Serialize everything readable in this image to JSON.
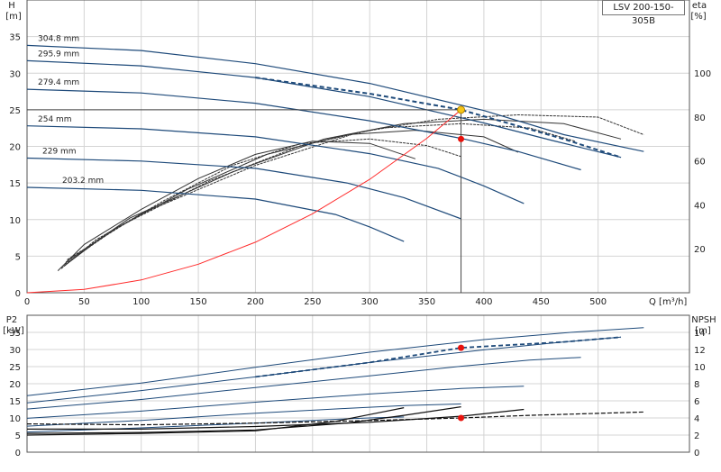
{
  "model": "LSV 200-150-305B",
  "chart_data": [
    {
      "type": "line",
      "title": "",
      "xlabel": "Q [m³/h]",
      "ylabel": "H\n[m]",
      "y2label": "eta\n[%]",
      "xlim": [
        0,
        580
      ],
      "ylim": [
        0,
        40
      ],
      "y2lim": [
        0,
        133.3
      ],
      "x_ticks": [
        0,
        50,
        100,
        150,
        200,
        250,
        300,
        350,
        400,
        450,
        500
      ],
      "y_ticks": [
        0,
        5,
        10,
        15,
        20,
        25,
        30,
        35
      ],
      "y2_ticks": [
        20,
        40,
        60,
        80,
        100
      ],
      "grid": true,
      "head_curves": [
        {
          "name": "304.8 mm",
          "x": [
            0,
            100,
            200,
            300,
            400,
            470,
            540
          ],
          "y": [
            33.8,
            33.1,
            31.3,
            28.6,
            24.9,
            21.6,
            19.3
          ]
        },
        {
          "name": "295.9 mm",
          "x": [
            0,
            100,
            200,
            300,
            400,
            460,
            520
          ],
          "y": [
            31.7,
            31.0,
            29.4,
            26.8,
            23.2,
            20.8,
            18.5
          ]
        },
        {
          "name": "279.4 mm",
          "x": [
            0,
            100,
            200,
            300,
            380,
            430,
            485
          ],
          "y": [
            27.8,
            27.3,
            25.9,
            23.5,
            21.1,
            19.3,
            16.8
          ]
        },
        {
          "name": "254 mm",
          "x": [
            0,
            100,
            200,
            300,
            360,
            400,
            435
          ],
          "y": [
            22.8,
            22.4,
            21.3,
            19.0,
            17.0,
            14.6,
            12.2
          ]
        },
        {
          "name": "229 mm",
          "x": [
            0,
            100,
            200,
            280,
            330,
            380
          ],
          "y": [
            18.4,
            18.0,
            17.0,
            15.0,
            13.0,
            10.1
          ]
        },
        {
          "name": "203.2 mm",
          "x": [
            0,
            100,
            200,
            270,
            300,
            330
          ],
          "y": [
            14.4,
            14.0,
            12.8,
            10.7,
            9.0,
            7.0
          ]
        }
      ],
      "eta_curves": [
        {
          "x": [
            27,
            50,
            100,
            150,
            200,
            250,
            300,
            340
          ],
          "y": [
            10,
            22,
            38,
            52,
            63,
            69,
            68,
            61
          ]
        },
        {
          "x": [
            30,
            60,
            120,
            180,
            240,
            300,
            350,
            380
          ],
          "y": [
            11,
            24,
            42,
            58,
            68,
            70,
            67,
            62
          ]
        },
        {
          "x": [
            32,
            70,
            140,
            210,
            280,
            340,
            400,
            430
          ],
          "y": [
            12,
            27,
            47,
            63,
            72,
            74,
            71,
            64
          ]
        },
        {
          "x": [
            33,
            80,
            160,
            240,
            310,
            380,
            440,
            480
          ],
          "y": [
            13,
            30,
            51,
            67,
            75,
            77,
            75,
            69
          ]
        },
        {
          "x": [
            34,
            90,
            180,
            260,
            330,
            400,
            470,
            520
          ],
          "y": [
            14,
            34,
            55,
            70,
            77,
            79,
            77,
            70
          ]
        },
        {
          "x": [
            35,
            100,
            200,
            290,
            360,
            430,
            500,
            540
          ],
          "y": [
            15,
            36,
            58,
            73,
            79,
            81,
            80,
            72
          ]
        }
      ],
      "system_curve": {
        "x": [
          0,
          50,
          100,
          150,
          200,
          250,
          300,
          350,
          380
        ],
        "y": [
          0,
          0.45,
          1.75,
          3.9,
          6.9,
          10.8,
          15.5,
          21.1,
          25
        ]
      },
      "duty_point": {
        "x": 380,
        "y": 25
      },
      "eta_point": {
        "x": 380,
        "y": 70
      }
    },
    {
      "type": "line",
      "title": "",
      "ylabel": "P2\n[kW]",
      "y2label": "NPSH\n[m]",
      "xlim": [
        0,
        580
      ],
      "ylim": [
        0,
        40
      ],
      "y2lim": [
        0,
        16
      ],
      "y_ticks": [
        0,
        5,
        10,
        15,
        20,
        25,
        30,
        35
      ],
      "y2_ticks": [
        0,
        2,
        4,
        6,
        8,
        10,
        12,
        14
      ],
      "grid": true,
      "power_curves": [
        {
          "x": [
            0,
            100,
            200,
            300,
            400,
            480,
            540
          ],
          "y": [
            16.5,
            20.2,
            24.8,
            29.2,
            32.9,
            35.1,
            36.4
          ]
        },
        {
          "x": [
            0,
            100,
            200,
            300,
            400,
            470,
            520
          ],
          "y": [
            14.4,
            18.0,
            22.0,
            26.2,
            29.9,
            32.2,
            33.6
          ]
        },
        {
          "x": [
            0,
            100,
            200,
            300,
            380,
            440,
            485
          ],
          "y": [
            12.6,
            15.4,
            18.9,
            22.3,
            25.1,
            26.9,
            27.7
          ]
        },
        {
          "x": [
            0,
            100,
            200,
            300,
            380,
            435
          ],
          "y": [
            9.9,
            12.0,
            14.6,
            17.0,
            18.6,
            19.3
          ]
        },
        {
          "x": [
            0,
            100,
            200,
            280,
            330,
            380
          ],
          "y": [
            7.6,
            9.3,
            11.4,
            12.8,
            13.6,
            14.1
          ]
        },
        {
          "x": [
            0,
            100,
            200,
            270,
            300,
            330
          ],
          "y": [
            5.9,
            7.1,
            8.5,
            9.6,
            10.0,
            10.3
          ]
        }
      ],
      "npsh_curves": [
        {
          "x": [
            0,
            100,
            200,
            300,
            380,
            440,
            540
          ],
          "y": [
            3.3,
            3.2,
            3.4,
            3.7,
            4.0,
            4.3,
            4.7
          ]
        },
        {
          "x": [
            0,
            100,
            200,
            300,
            380,
            435
          ],
          "y": [
            2.7,
            2.7,
            3.0,
            3.5,
            4.2,
            5.0
          ]
        },
        {
          "x": [
            0,
            100,
            200,
            280,
            330,
            380
          ],
          "y": [
            2.2,
            2.3,
            2.6,
            3.4,
            4.3,
            5.3
          ]
        },
        {
          "x": [
            0,
            100,
            200,
            270,
            300,
            330
          ],
          "y": [
            2.0,
            2.2,
            2.5,
            3.6,
            4.4,
            5.2
          ]
        }
      ],
      "power_point": {
        "x": 380,
        "y": 30.5
      },
      "npsh_point": {
        "x": 380,
        "y": 4.0
      }
    }
  ]
}
